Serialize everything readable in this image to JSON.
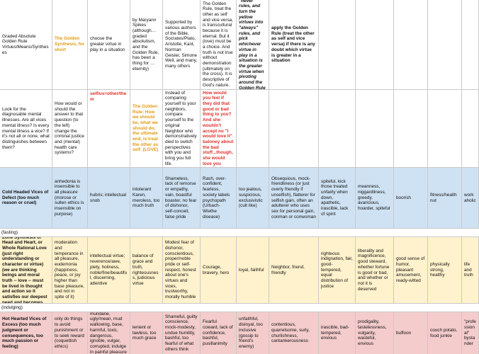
{
  "colors": {
    "blue": "#cfe2f3",
    "yellow": "#fff2cc",
    "red": "#f4cccc",
    "gold": "#e09b16",
    "red_text": "#e0302a"
  },
  "rows": {
    "r1": {
      "c0": "Graded Absolute Golden Rule Virtues/Means/Syntheses",
      "c1": "The Golden Synthesis, for short",
      "c2": "choose the greater virtue in play in a situation",
      "c3": "by Maryann Spikes (although… graded absolutism, and the Golden Rule, has been a thing for … eternity)",
      "c4": "Supported by various authors of the Bible, Socrates/Plato, Aristotle, Kant, Norman Geisler, Simone Weil, and many, many others",
      "c5": "The Golden Rule, treat the other as self and vice versa, is transcultural because it is eternal. But it (love) must be a choice. And truth is not true without demonstration (ultimately on the cross). It is descriptive of God's nature.",
      "c6": "Turn the blue and red vices into \"never\" rules, and turn the yellow virtues into \"always\" rules, and pick whichever virtue in play in a situation is the greater virtue when pivoting around the Golden Rule (treat self as other and vice versa).",
      "c7": "apply the Golden Rule (treat the other as self and vice versa) if there is any doubt which virtue is greater in a situation"
    },
    "r2": {
      "c0": "Look for the diagnosable mental illnesses. Are all vices mental illness? Is every mental illness a vice? If it's not all or none, what distinguishes between them?",
      "c1": "How would or should the answer to that question (to the left) change the criminal justice and (mental) health care systems?",
      "c2": "self/us=other/them",
      "c3": "The Golden Rule: How we should be, what we should do, the ultimate end, is treat the other as self. (LOVE)",
      "c4": "Instead of comparing yourself to your neighbors, compare yourself to the original Neighbor who demonstratively died to switch perspectives with you and bring you full life.",
      "c5": "Your mom put it this way: How would you feel if they did that good or bad thing to you? And she wouldn't accept no \"I would love it\" baloney about the bad stuff...though, she would love you despite the baloney."
    },
    "r3": {
      "c0": "Cold Headed Vices of Defect (too much reason or cruel)",
      "c1": "anhedonia is insensible to all pleasure (morose or sullen ethics is insensible on purpose)",
      "c2": "hubris; intellectual snob",
      "c3": "intolerant Karen, meroless, too much truth",
      "c4": "Shameless, lack of remorse or empathy, vain, boastful boaster, no fear of dishonor, self-conceit, false pride",
      "c5": "Rash, over-confident, fearless, society labels psychopath (Urbach-Wiethe disease)",
      "c6": "too jealous, suspicious, exclusivistic (cult like)",
      "c7": "Obsequious, mock-friendliness (or just overly friendly if unselfish), flatterer for selfish gain, often an adulterer who uses sex for personal gain, conman or conwoman",
      "c8": "spiteful, kick those treated unfairly when down, apathetic, irascible, lack of spirit",
      "c9": "meanness, niggardliness, greedy, avaricious, hoarder, spiteful",
      "c10": "boorish",
      "c11": "fitness/health nut",
      "c12": "workaholic"
    },
    "fasting": "(fasting)",
    "r4": {
      "c0": "Goldilocks (Golden) Zone Synthesis of Head and Heart, or Whole Rational Love (just right understanding or character or virtue) (we are thinking beings and moral truth -- love -- must be lived in thought and action so it satisfies our deepest need and becomes part of us by choice)",
      "c1": "moderation and temperance in all pleasure, eudemonia (happiness, peace, or joy higher than base pleasure, and not in spite of it)",
      "c2": "intellectual virtue; reverence/awe, piety, holiness, noble/fine/beautiful, discerning, attentive",
      "c3": "balance of grace and truth, righteousness, judicious virtue",
      "c4": "Modest fear of dishonor, conscientious, proper/noble pride or self-respect, honest about one's virtues and vices, trustworthy, morally humble",
      "c5": "Courage, bravery, hero",
      "c6": "loyal, faithful",
      "c7": "Neighbor, friend, friendly",
      "c8": "righteous indignation, fair, good-tempered, equal distribution of justice",
      "c9": "liberality and magnificence, good steward, whether fortune is good or bad, and whether or not it is deserved",
      "c10": "good sense of humor, pleasant amusement, ready-witted",
      "c11": "physically strong, healthy",
      "c12": "life and truth"
    },
    "indulging": "(indulging)",
    "r5": {
      "c0": "Hot Hearted Vices of Excess (too much judgment or consequences, too much passion or feeling)",
      "c1": "only do things to avoid punishment or to seek reward (coquettish ethics)",
      "c2": "mundane, ugly/mean, mud wallowing, base, harmful, toxic, dangerous, ignoble, vulgar, corrupted, indulge in painful pleasure",
      "c3": "lenient or lawless, too much grace",
      "c4": "Shameful, guilty conscience, mock-modesty, undue humility, bashful, too fearful of what others think",
      "c5": "Fearful coward, lack of confidence, bashful, pusillanimity",
      "c6": "unfaithful, disloyal, too inclusive (gossip to friend's enemy)",
      "c7": "contentious, quarrelsome, surly, churlishness, cantankerousness",
      "c8": "irascible, bad-tempered, envious",
      "c9": "prodigality, tastelessness, vulgarity, wasteful, envious",
      "c10": "buffoon",
      "c11": "couch potato, food junkie",
      "c12": "\"professional\" bystander"
    }
  }
}
